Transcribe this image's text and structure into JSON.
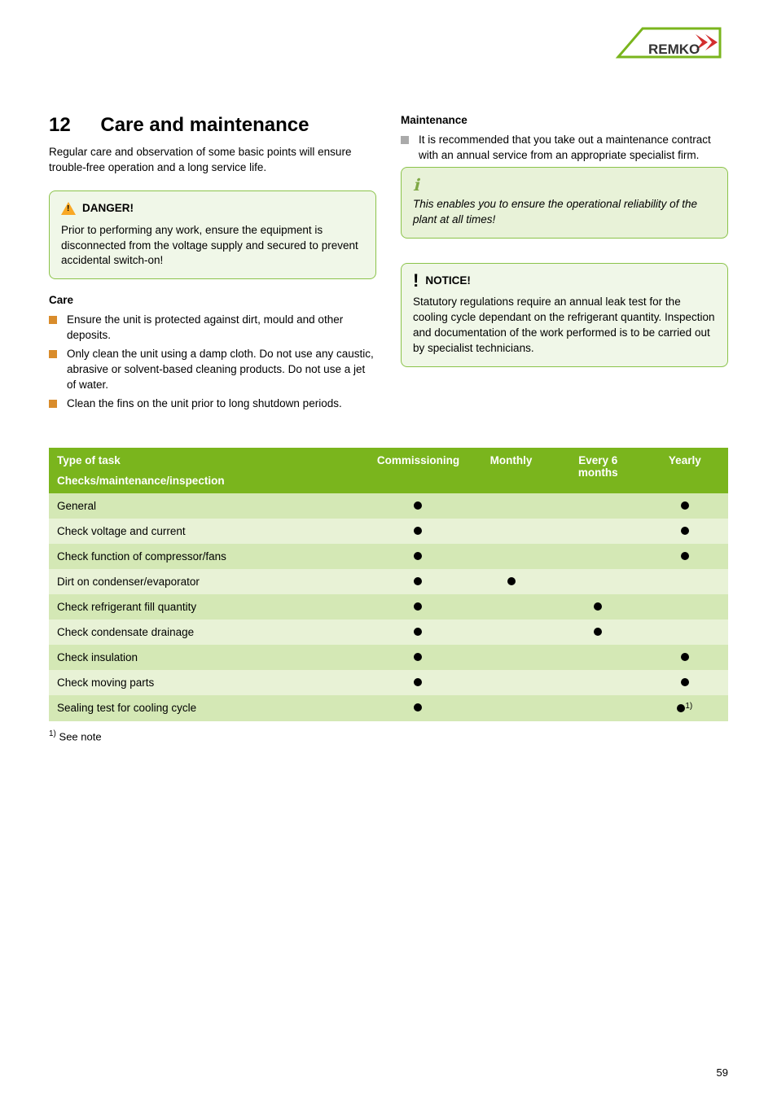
{
  "logo": {
    "text": "REMKO",
    "stroke_color": "#7ab51d",
    "text_color": "#333333",
    "chevron_color": "#d32f2f",
    "bg_color": "#ffffff"
  },
  "heading": {
    "number": "12",
    "title": "Care and maintenance"
  },
  "intro": "Regular care and observation of some basic points will ensure trouble-free operation and a long service life.",
  "danger": {
    "label": "DANGER!",
    "body": "Prior to performing any work, ensure the equipment is disconnected from the voltage supply and secured to prevent accidental switch-on!"
  },
  "care": {
    "heading": "Care",
    "items": [
      "Ensure the unit is protected against dirt, mould and other deposits.",
      "Only clean the unit using a damp cloth. Do not use any caustic, abrasive or solvent-based cleaning products. Do not use a jet of water.",
      "Clean the fins on the unit prior to long shutdown periods."
    ]
  },
  "maintenance": {
    "heading": "Maintenance",
    "items": [
      "It is recommended that you take out a maintenance contract with an annual service from an appropriate specialist firm."
    ]
  },
  "info_box": "This enables you to ensure the operational reliability of the plant at all times!",
  "notice": {
    "label": "NOTICE!",
    "body": "Statutory regulations require an annual leak test for the cooling cycle dependant on the refrigerant quantity. Inspection and documentation of the work performed is to be carried out by specialist technicians."
  },
  "table": {
    "header_bg": "#7ab51d",
    "header_fg": "#ffffff",
    "row_odd_bg": "#d4e8b5",
    "row_even_bg": "#e8f2d6",
    "columns": {
      "task_top": "Type of task",
      "task_sub": "Checks/maintenance/inspection",
      "commissioning": "Commissioning",
      "monthly": "Monthly",
      "every6": "Every 6 months",
      "yearly": "Yearly"
    },
    "rows": [
      {
        "label": "General",
        "commissioning": true,
        "monthly": false,
        "every6": false,
        "yearly": true,
        "yearly_note": false
      },
      {
        "label": "Check voltage and current",
        "commissioning": true,
        "monthly": false,
        "every6": false,
        "yearly": true,
        "yearly_note": false
      },
      {
        "label": "Check function of compressor/fans",
        "commissioning": true,
        "monthly": false,
        "every6": false,
        "yearly": true,
        "yearly_note": false
      },
      {
        "label": "Dirt on condenser/evaporator",
        "commissioning": true,
        "monthly": true,
        "every6": false,
        "yearly": false,
        "yearly_note": false
      },
      {
        "label": "Check refrigerant fill quantity",
        "commissioning": true,
        "monthly": false,
        "every6": true,
        "yearly": false,
        "yearly_note": false
      },
      {
        "label": "Check condensate drainage",
        "commissioning": true,
        "monthly": false,
        "every6": true,
        "yearly": false,
        "yearly_note": false
      },
      {
        "label": "Check insulation",
        "commissioning": true,
        "monthly": false,
        "every6": false,
        "yearly": true,
        "yearly_note": false
      },
      {
        "label": "Check moving parts",
        "commissioning": true,
        "monthly": false,
        "every6": false,
        "yearly": true,
        "yearly_note": false
      },
      {
        "label": "Sealing test for cooling cycle",
        "commissioning": true,
        "monthly": false,
        "every6": false,
        "yearly": true,
        "yearly_note": true
      }
    ],
    "footnote_marker": "1)",
    "footnote": "See note"
  },
  "page_number": "59"
}
